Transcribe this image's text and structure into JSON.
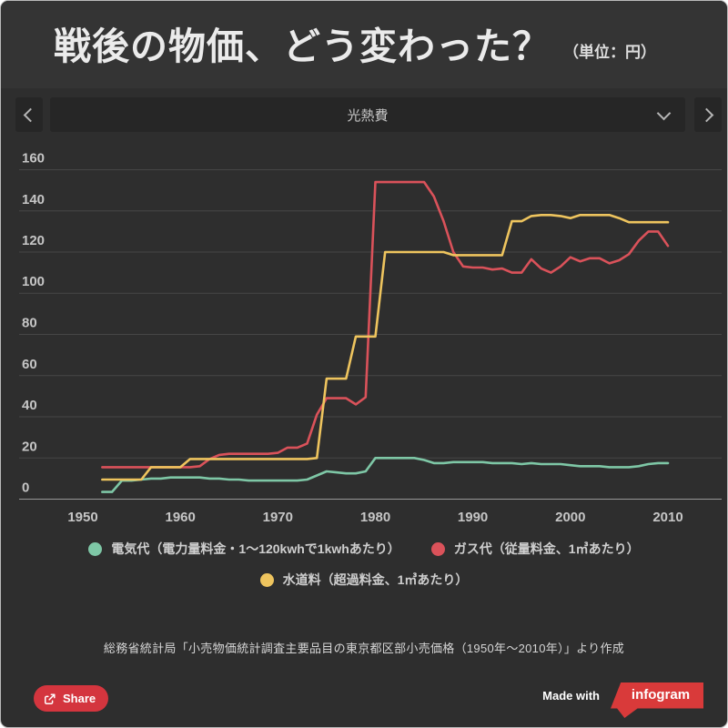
{
  "header": {
    "title": "戦後の物価、どう変わった？",
    "unit_note": "（単位：円）"
  },
  "selector": {
    "value": "光熱費"
  },
  "chart_data": {
    "type": "line",
    "title": "光熱費",
    "xlabel": "",
    "ylabel": "",
    "ylim": [
      0,
      160
    ],
    "yticks": [
      0,
      20,
      40,
      60,
      80,
      100,
      120,
      140,
      160
    ],
    "xticks": [
      1950,
      1960,
      1970,
      1980,
      1990,
      2000,
      2010
    ],
    "grid": true,
    "legend_position": "bottom",
    "x": [
      1952,
      1953,
      1954,
      1955,
      1956,
      1957,
      1958,
      1959,
      1960,
      1961,
      1962,
      1963,
      1964,
      1965,
      1966,
      1967,
      1968,
      1969,
      1970,
      1971,
      1972,
      1973,
      1974,
      1975,
      1976,
      1977,
      1978,
      1979,
      1980,
      1981,
      1982,
      1983,
      1984,
      1985,
      1986,
      1987,
      1988,
      1989,
      1990,
      1991,
      1992,
      1993,
      1994,
      1995,
      1996,
      1997,
      1998,
      1999,
      2000,
      2001,
      2002,
      2003,
      2004,
      2005,
      2006,
      2007,
      2008,
      2009,
      2010
    ],
    "series": [
      {
        "name": "電気代（電力量料金・1〜120kwhで1kwhあたり）",
        "color": "#7ec7a6",
        "values": [
          3.5,
          3.5,
          9,
          9,
          9.5,
          10,
          10,
          10.5,
          10.5,
          10.5,
          10.5,
          10,
          10,
          9.5,
          9.5,
          9,
          9,
          9,
          9,
          9,
          9,
          9.5,
          11.5,
          13.5,
          13,
          12.5,
          12.5,
          13.5,
          20,
          20,
          20,
          20,
          20,
          19,
          17.5,
          17.5,
          18,
          18,
          18,
          18,
          17.5,
          17.5,
          17.5,
          17,
          17.5,
          17,
          17,
          17,
          16.5,
          16,
          16,
          16,
          15.5,
          15.5,
          15.5,
          16,
          17,
          17.5,
          17.5
        ]
      },
      {
        "name": "ガス代（従量料金、1㎥あたり）",
        "color": "#da525a",
        "values": [
          15.5,
          15.5,
          15.5,
          15.5,
          15.5,
          15.5,
          15.5,
          15.5,
          15.5,
          15.5,
          16,
          19.5,
          21.5,
          22,
          22,
          22,
          22,
          22,
          22.5,
          25,
          25,
          27,
          41,
          49,
          49,
          49,
          46,
          49.5,
          154,
          154,
          154,
          154,
          154,
          154,
          147,
          135,
          120,
          113,
          112.5,
          112.5,
          111.5,
          112,
          110,
          110,
          116.5,
          112,
          110,
          113,
          117.5,
          115.5,
          117,
          117,
          114.5,
          116,
          119,
          125.5,
          130,
          130,
          123
        ]
      },
      {
        "name": "水道料（超過料金、1㎥あたり）",
        "color": "#eec45e",
        "values": [
          9.5,
          9.5,
          9.5,
          9.5,
          9.5,
          15.5,
          15.5,
          15.5,
          15.5,
          19.5,
          19.5,
          19.5,
          19.5,
          19.5,
          19.5,
          19.5,
          19.5,
          19.5,
          19.5,
          19.5,
          19.5,
          19.5,
          20,
          58.5,
          58.5,
          58.5,
          79,
          79,
          79,
          120,
          120,
          120,
          120,
          120,
          120,
          120,
          118.5,
          118.5,
          118.5,
          118.5,
          118.5,
          118.5,
          135,
          135,
          137.5,
          138,
          138,
          137.5,
          136.5,
          138,
          138,
          138,
          138,
          136.5,
          134.5,
          134.5,
          134.5,
          134.5,
          134.5
        ]
      }
    ]
  },
  "source": {
    "text": "総務省統計局「小売物価統計調査主要品目の東京都区部小売価格（1950年〜2010年）」より作成"
  },
  "footer": {
    "share_label": "Share",
    "made_with_label": "Made with",
    "brand_label": "infogram"
  }
}
